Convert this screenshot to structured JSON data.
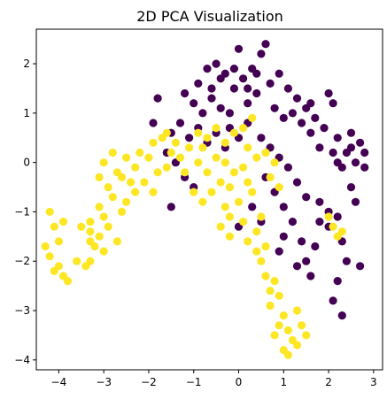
{
  "chart_data": {
    "type": "scatter",
    "title": "2D PCA Visualization",
    "xlabel": "",
    "ylabel": "",
    "xlim": [
      -4.5,
      3.2
    ],
    "ylim": [
      -4.2,
      2.7
    ],
    "x_ticks": [
      -4,
      -3,
      -2,
      -1,
      0,
      1,
      2,
      3
    ],
    "y_ticks": [
      -4,
      -3,
      -2,
      -1,
      0,
      1,
      2
    ],
    "grid": false,
    "colors": {
      "class_0": "#440154",
      "class_1": "#fde725"
    },
    "series": [
      {
        "values": [
          [
            -0.9,
            1.6
          ],
          [
            -0.7,
            1.9
          ],
          [
            -0.5,
            2.0
          ],
          [
            -0.3,
            1.8
          ],
          [
            -0.1,
            1.5
          ],
          [
            0.1,
            1.7
          ],
          [
            0.3,
            1.9
          ],
          [
            0.5,
            2.2
          ],
          [
            0.6,
            2.4
          ],
          [
            0.0,
            2.3
          ],
          [
            -1.2,
            1.4
          ],
          [
            -1.0,
            1.2
          ],
          [
            -0.8,
            1.0
          ],
          [
            -0.6,
            1.3
          ],
          [
            -0.4,
            1.1
          ],
          [
            -0.2,
            1.0
          ],
          [
            0.2,
            1.2
          ],
          [
            0.4,
            1.4
          ],
          [
            0.7,
            1.6
          ],
          [
            0.9,
            1.8
          ],
          [
            1.1,
            1.5
          ],
          [
            1.3,
            1.3
          ],
          [
            1.5,
            1.1
          ],
          [
            1.7,
            0.9
          ],
          [
            1.9,
            0.7
          ],
          [
            1.2,
            1.0
          ],
          [
            1.4,
            0.8
          ],
          [
            1.6,
            0.6
          ],
          [
            1.0,
            0.9
          ],
          [
            0.8,
            1.1
          ],
          [
            -1.5,
            0.6
          ],
          [
            -1.3,
            0.8
          ],
          [
            -1.1,
            0.5
          ],
          [
            -0.9,
            0.7
          ],
          [
            -0.7,
            0.4
          ],
          [
            -0.5,
            0.6
          ],
          [
            -0.3,
            0.3
          ],
          [
            -1.6,
            0.2
          ],
          [
            -1.4,
            0.0
          ],
          [
            -1.2,
            -0.3
          ],
          [
            -1.0,
            -0.5
          ],
          [
            -1.5,
            -0.9
          ],
          [
            -1.8,
            1.3
          ],
          [
            -1.9,
            0.8
          ],
          [
            -0.2,
            0.7
          ],
          [
            0.0,
            0.5
          ],
          [
            0.2,
            0.8
          ],
          [
            0.5,
            0.5
          ],
          [
            0.7,
            0.3
          ],
          [
            0.9,
            0.1
          ],
          [
            1.1,
            -0.1
          ],
          [
            0.6,
            -0.3
          ],
          [
            0.8,
            -0.6
          ],
          [
            1.0,
            -0.9
          ],
          [
            1.2,
            -1.2
          ],
          [
            1.0,
            -1.5
          ],
          [
            0.9,
            -1.8
          ],
          [
            1.3,
            -0.4
          ],
          [
            1.5,
            -0.7
          ],
          [
            1.4,
            -1.6
          ],
          [
            1.5,
            -2.0
          ],
          [
            1.6,
            -2.3
          ],
          [
            1.3,
            -2.1
          ],
          [
            0.3,
            -0.9
          ],
          [
            0.0,
            -1.3
          ],
          [
            0.5,
            -1.2
          ],
          [
            2.2,
            0.5
          ],
          [
            2.4,
            0.2
          ],
          [
            2.6,
            0.0
          ],
          [
            2.8,
            -0.1
          ],
          [
            2.5,
            0.6
          ],
          [
            2.7,
            0.4
          ],
          [
            2.3,
            -0.1
          ],
          [
            2.1,
            0.2
          ],
          [
            2.0,
            1.4
          ],
          [
            2.1,
            1.2
          ],
          [
            2.5,
            -0.5
          ],
          [
            2.6,
            -0.8
          ],
          [
            2.2,
            -1.1
          ],
          [
            2.0,
            -1.3
          ],
          [
            2.3,
            -1.6
          ],
          [
            2.4,
            -2.0
          ],
          [
            2.7,
            -2.1
          ],
          [
            2.2,
            -2.4
          ],
          [
            2.1,
            -2.8
          ],
          [
            2.3,
            -3.1
          ],
          [
            1.8,
            -0.8
          ],
          [
            1.8,
            -1.2
          ],
          [
            1.7,
            -1.7
          ],
          [
            2.0,
            -1.0
          ],
          [
            -0.4,
            1.7
          ],
          [
            -0.1,
            1.9
          ],
          [
            0.4,
            1.8
          ],
          [
            0.2,
            1.5
          ],
          [
            -0.6,
            1.5
          ],
          [
            1.6,
            1.2
          ],
          [
            1.8,
            0.3
          ],
          [
            2.2,
            0.0
          ],
          [
            2.8,
            0.2
          ],
          [
            2.5,
            0.3
          ]
        ]
      },
      {
        "values": [
          [
            -4.2,
            -1.0
          ],
          [
            -4.1,
            -1.3
          ],
          [
            -3.9,
            -1.2
          ],
          [
            -4.0,
            -1.6
          ],
          [
            -4.2,
            -1.9
          ],
          [
            -4.0,
            -2.1
          ],
          [
            -3.9,
            -2.3
          ],
          [
            -3.8,
            -2.4
          ],
          [
            -4.3,
            -1.7
          ],
          [
            -4.1,
            -2.2
          ],
          [
            -3.3,
            -1.4
          ],
          [
            -3.2,
            -1.7
          ],
          [
            -3.1,
            -1.5
          ],
          [
            -3.0,
            -1.8
          ],
          [
            -2.9,
            -1.3
          ],
          [
            -2.7,
            -1.6
          ],
          [
            -3.4,
            -2.1
          ],
          [
            -3.3,
            -1.2
          ],
          [
            -3.5,
            -1.3
          ],
          [
            -3.3,
            -2.0
          ],
          [
            -3.0,
            -1.1
          ],
          [
            -3.1,
            -0.9
          ],
          [
            -2.8,
            -0.7
          ],
          [
            -2.6,
            -1.0
          ],
          [
            -2.9,
            -0.5
          ],
          [
            -3.1,
            -0.3
          ],
          [
            -3.0,
            0.0
          ],
          [
            -2.8,
            0.2
          ],
          [
            -2.7,
            -0.2
          ],
          [
            -2.5,
            0.1
          ],
          [
            -2.3,
            -0.1
          ],
          [
            -2.4,
            -0.4
          ],
          [
            -2.2,
            0.2
          ],
          [
            -2.0,
            0.1
          ],
          [
            -1.9,
            0.4
          ],
          [
            -1.7,
            0.5
          ],
          [
            -1.8,
            -0.2
          ],
          [
            -1.6,
            -0.1
          ],
          [
            -1.5,
            0.2
          ],
          [
            -1.9,
            -0.6
          ],
          [
            -2.1,
            -0.4
          ],
          [
            -1.4,
            0.4
          ],
          [
            -1.3,
            0.1
          ],
          [
            -1.2,
            -0.2
          ],
          [
            -1.1,
            0.3
          ],
          [
            -0.9,
            0.0
          ],
          [
            -0.8,
            0.3
          ],
          [
            -0.7,
            -0.2
          ],
          [
            -0.5,
            0.1
          ],
          [
            -0.3,
            0.0
          ],
          [
            -0.4,
            -0.4
          ],
          [
            -0.6,
            -0.6
          ],
          [
            -0.2,
            -0.5
          ],
          [
            -0.1,
            -0.2
          ],
          [
            0.1,
            -0.1
          ],
          [
            0.2,
            -0.4
          ],
          [
            0.3,
            -0.6
          ],
          [
            -0.3,
            -0.9
          ],
          [
            -0.2,
            -1.1
          ],
          [
            0.0,
            -0.8
          ],
          [
            0.1,
            -1.2
          ],
          [
            -0.4,
            -1.3
          ],
          [
            -0.2,
            -1.5
          ],
          [
            0.2,
            -1.6
          ],
          [
            0.4,
            -1.4
          ],
          [
            0.5,
            -1.1
          ],
          [
            0.4,
            -1.8
          ],
          [
            0.6,
            -1.7
          ],
          [
            0.5,
            -2.0
          ],
          [
            0.6,
            -2.3
          ],
          [
            0.7,
            -2.6
          ],
          [
            0.8,
            -2.4
          ],
          [
            0.9,
            -2.7
          ],
          [
            0.7,
            -2.9
          ],
          [
            1.0,
            -3.1
          ],
          [
            0.9,
            -3.3
          ],
          [
            1.1,
            -3.4
          ],
          [
            1.2,
            -3.6
          ],
          [
            1.3,
            -3.7
          ],
          [
            1.0,
            -3.8
          ],
          [
            1.1,
            -3.9
          ],
          [
            1.4,
            -3.3
          ],
          [
            1.5,
            -3.5
          ],
          [
            1.3,
            -3.0
          ],
          [
            0.8,
            -3.5
          ],
          [
            -0.9,
            0.6
          ],
          [
            -0.7,
            0.5
          ],
          [
            -0.5,
            0.7
          ],
          [
            -0.3,
            0.4
          ],
          [
            -0.1,
            0.6
          ],
          [
            0.1,
            0.7
          ],
          [
            0.3,
            0.9
          ],
          [
            0.2,
            0.3
          ],
          [
            0.4,
            0.1
          ],
          [
            0.6,
            0.2
          ],
          [
            0.8,
            0.0
          ],
          [
            0.7,
            -0.3
          ],
          [
            0.9,
            -0.5
          ],
          [
            -1.0,
            -0.6
          ],
          [
            -0.8,
            -0.8
          ],
          [
            2.0,
            -1.1
          ],
          [
            2.1,
            -1.3
          ],
          [
            2.2,
            -1.5
          ],
          [
            2.3,
            -1.4
          ],
          [
            -2.5,
            -0.8
          ],
          [
            -2.3,
            -0.6
          ],
          [
            -2.6,
            -0.3
          ],
          [
            -3.6,
            -2.0
          ],
          [
            -3.3,
            -1.6
          ],
          [
            -1.6,
            0.6
          ]
        ]
      }
    ]
  }
}
